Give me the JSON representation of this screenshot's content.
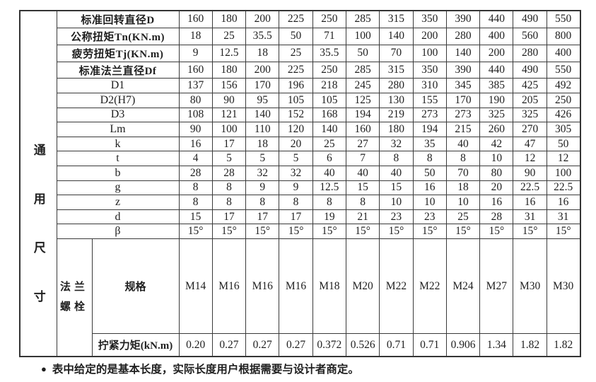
{
  "page": {
    "background": "#ffffff",
    "text_color": "#1f1f1f",
    "border_color": "#3a3a3a"
  },
  "table": {
    "group_label": "通用尺寸",
    "flange_label": "法兰螺栓",
    "rows": [
      {
        "label": "标准回转直径D",
        "label_style": "cjk",
        "values": [
          "160",
          "180",
          "200",
          "225",
          "250",
          "285",
          "315",
          "350",
          "390",
          "440",
          "490",
          "550"
        ]
      },
      {
        "label": "公称扭矩Tn(KN.m)",
        "label_style": "cjk",
        "values": [
          "18",
          "25",
          "35.5",
          "50",
          "71",
          "100",
          "140",
          "200",
          "280",
          "400",
          "560",
          "800"
        ]
      },
      {
        "label": "疲劳扭矩Tj(KN.m)",
        "label_style": "cjk",
        "values": [
          "9",
          "12.5",
          "18",
          "25",
          "35.5",
          "50",
          "70",
          "100",
          "140",
          "200",
          "280",
          "400"
        ]
      },
      {
        "label": "标准法兰直径Df",
        "label_style": "cjk",
        "values": [
          "160",
          "180",
          "200",
          "225",
          "250",
          "285",
          "315",
          "350",
          "390",
          "440",
          "490",
          "550"
        ]
      },
      {
        "label": "D1",
        "label_style": "latin",
        "values": [
          "137",
          "156",
          "170",
          "196",
          "218",
          "245",
          "280",
          "310",
          "345",
          "385",
          "425",
          "492"
        ]
      },
      {
        "label": "D2(H7)",
        "label_style": "latin",
        "values": [
          "80",
          "90",
          "95",
          "105",
          "105",
          "125",
          "130",
          "155",
          "170",
          "190",
          "205",
          "250"
        ]
      },
      {
        "label": "D3",
        "label_style": "latin",
        "values": [
          "108",
          "121",
          "140",
          "152",
          "168",
          "194",
          "219",
          "273",
          "273",
          "325",
          "325",
          "426"
        ]
      },
      {
        "label": "Lm",
        "label_style": "latin",
        "values": [
          "90",
          "100",
          "110",
          "120",
          "140",
          "160",
          "180",
          "194",
          "215",
          "260",
          "270",
          "305"
        ]
      },
      {
        "label": "k",
        "label_style": "latin",
        "values": [
          "16",
          "17",
          "18",
          "20",
          "25",
          "27",
          "32",
          "35",
          "40",
          "42",
          "47",
          "50"
        ]
      },
      {
        "label": "t",
        "label_style": "latin",
        "values": [
          "4",
          "5",
          "5",
          "5",
          "6",
          "7",
          "8",
          "8",
          "8",
          "10",
          "12",
          "12"
        ]
      },
      {
        "label": "b",
        "label_style": "latin",
        "values": [
          "28",
          "28",
          "32",
          "32",
          "40",
          "40",
          "40",
          "50",
          "70",
          "80",
          "90",
          "100"
        ]
      },
      {
        "label": "g",
        "label_style": "latin",
        "values": [
          "8",
          "8",
          "9",
          "9",
          "12.5",
          "15",
          "15",
          "16",
          "18",
          "20",
          "22.5",
          "22.5"
        ]
      },
      {
        "label": "z",
        "label_style": "latin",
        "values": [
          "8",
          "8",
          "8",
          "8",
          "8",
          "8",
          "10",
          "10",
          "10",
          "16",
          "16",
          "16"
        ]
      },
      {
        "label": "d",
        "label_style": "latin",
        "values": [
          "15",
          "17",
          "17",
          "17",
          "19",
          "21",
          "23",
          "23",
          "25",
          "28",
          "31",
          "31"
        ]
      },
      {
        "label": "β",
        "label_style": "latin",
        "values": [
          "15°",
          "15°",
          "15°",
          "15°",
          "15°",
          "15°",
          "15°",
          "15°",
          "15°",
          "15°",
          "15°",
          "15°"
        ]
      },
      {
        "label": "规格",
        "label_style": "flange-sub",
        "values": [
          "M14",
          "M16",
          "M16",
          "M16",
          "M18",
          "M20",
          "M22",
          "M22",
          "M24",
          "M27",
          "M30",
          "M30"
        ]
      },
      {
        "label": "拧紧力矩(kN.m)",
        "label_style": "flange-sub",
        "values": [
          "0.20",
          "0.27",
          "0.27",
          "0.27",
          "0.372",
          "0.526",
          "0.71",
          "0.71",
          "0.906",
          "1.34",
          "1.82",
          "1.82"
        ]
      }
    ]
  },
  "footer": {
    "bullet": "●",
    "note": "表中给定的是基本长度，实际长度用户根据需要与设计者商定。"
  }
}
